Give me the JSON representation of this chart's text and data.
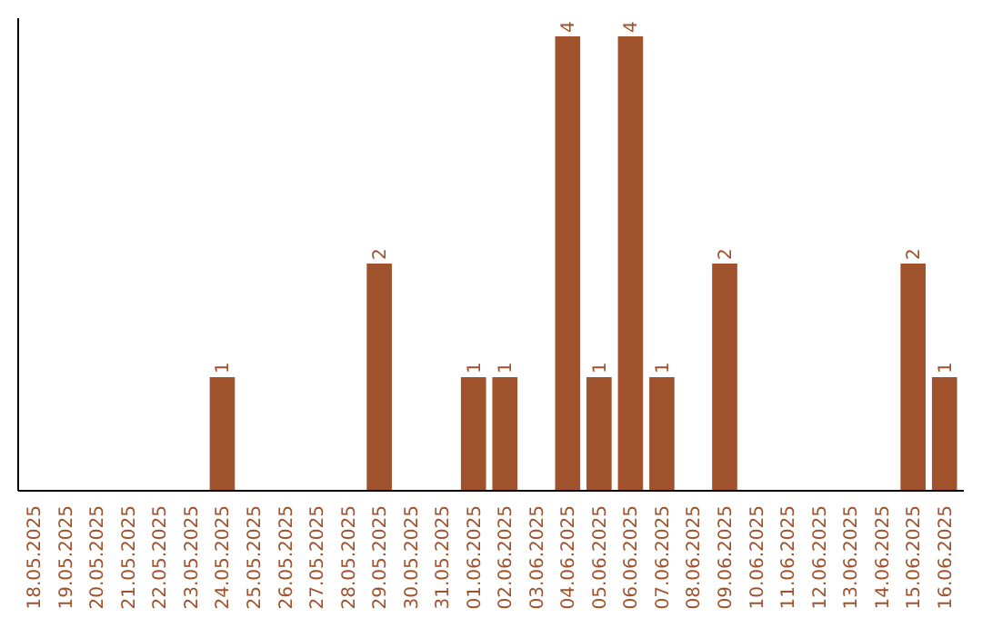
{
  "chart_data": {
    "type": "bar",
    "categories": [
      "18.05.2025",
      "19.05.2025",
      "20.05.2025",
      "21.05.2025",
      "22.05.2025",
      "23.05.2025",
      "24.05.2025",
      "25.05.2025",
      "26.05.2025",
      "27.05.2025",
      "28.05.2025",
      "29.05.2025",
      "30.05.2025",
      "31.05.2025",
      "01.06.2025",
      "02.06.2025",
      "03.06.2025",
      "04.06.2025",
      "05.06.2025",
      "06.06.2025",
      "07.06.2025",
      "08.06.2025",
      "09.06.2025",
      "10.06.2025",
      "11.06.2025",
      "12.06.2025",
      "13.06.2025",
      "14.06.2025",
      "15.06.2025",
      "16.06.2025"
    ],
    "values": [
      0,
      0,
      0,
      0,
      0,
      0,
      1,
      0,
      0,
      0,
      0,
      2,
      0,
      0,
      1,
      1,
      0,
      4,
      1,
      4,
      1,
      0,
      2,
      0,
      0,
      0,
      0,
      0,
      2,
      1
    ],
    "value_labels": [
      null,
      null,
      null,
      null,
      null,
      null,
      "1",
      null,
      null,
      null,
      null,
      "2",
      null,
      null,
      "1",
      "1",
      null,
      "4",
      "1",
      "4",
      "1",
      null,
      "2",
      null,
      null,
      null,
      null,
      null,
      "2",
      "1"
    ],
    "color": "#a0522d",
    "tick_labels": "x",
    "grid": false
  }
}
